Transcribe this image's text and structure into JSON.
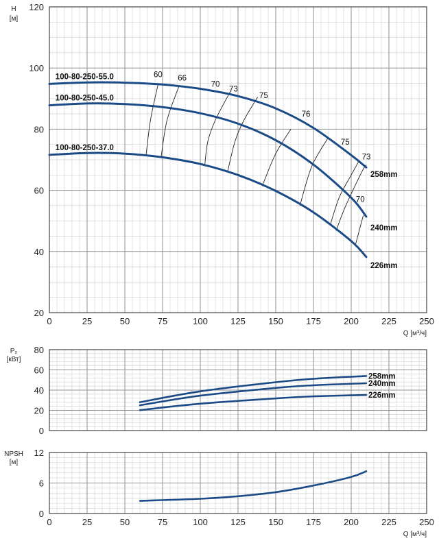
{
  "chart_data": [
    {
      "id": "head",
      "type": "line",
      "ylabel": [
        "H",
        "[м]"
      ],
      "xlabel": "Q [м³/ч]",
      "xlim": [
        0,
        250
      ],
      "ylim": [
        20,
        120
      ],
      "xticks": [
        0,
        25,
        50,
        75,
        100,
        125,
        150,
        175,
        200,
        225,
        250
      ],
      "yticks": [
        20,
        40,
        60,
        80,
        100,
        120
      ],
      "grid": true,
      "series": [
        {
          "name": "100-80-250-55.0",
          "end_label": "258mm",
          "x": [
            0,
            25,
            50,
            75,
            100,
            125,
            150,
            175,
            200,
            210
          ],
          "y": [
            94.8,
            95.3,
            95.2,
            94.6,
            93.2,
            90.8,
            86.8,
            80.4,
            71.5,
            67.5
          ]
        },
        {
          "name": "100-80-250-45.0",
          "end_label": "240mm",
          "x": [
            0,
            25,
            50,
            75,
            100,
            125,
            150,
            175,
            200,
            210
          ],
          "y": [
            87.8,
            88.4,
            88.2,
            87.2,
            85.2,
            81.8,
            76.4,
            68.4,
            57.6,
            51.4
          ]
        },
        {
          "name": "100-80-250-37.0",
          "end_label": "226mm",
          "x": [
            0,
            25,
            50,
            75,
            100,
            125,
            150,
            175,
            200,
            210
          ],
          "y": [
            71.6,
            72.2,
            72.0,
            70.8,
            68.6,
            65.0,
            59.8,
            52.8,
            43.4,
            38.2
          ]
        }
      ],
      "efficiency_lines": [
        {
          "label": "60",
          "points": [
            [
              64,
              71.2
            ],
            [
              67,
              83
            ],
            [
              72,
              94.6
            ]
          ]
        },
        {
          "label": "66",
          "points": [
            [
              74,
              70.8
            ],
            [
              78,
              83
            ],
            [
              86,
              94.2
            ]
          ]
        },
        {
          "label": "70",
          "points": [
            [
              103,
              68.4
            ],
            [
              105,
              76
            ],
            [
              110,
              83
            ],
            [
              120,
              92.4
            ]
          ]
        },
        {
          "label": "73",
          "points": [
            [
              118,
              65.9
            ],
            [
              123,
              76
            ],
            [
              129,
              83
            ],
            [
              138,
              90.5
            ]
          ]
        },
        {
          "label": "75",
          "points": [
            [
              141,
              61.4
            ],
            [
              150,
              72
            ],
            [
              160,
              80
            ]
          ]
        },
        {
          "label": "76",
          "points": [
            [
              166,
              55
            ],
            [
              174,
              68
            ],
            [
              185,
              77.4
            ]
          ]
        },
        {
          "label": "75",
          "points": [
            [
              186,
              48.5
            ],
            [
              192,
              57.6
            ],
            [
              200,
              65
            ],
            [
              205,
              69.5
            ]
          ]
        },
        {
          "label": "73",
          "points": [
            [
              190,
              46.8
            ],
            [
              196,
              54.5
            ],
            [
              207,
              66
            ],
            [
              210,
              68.3
            ]
          ]
        },
        {
          "label": "70",
          "points": [
            [
              203,
              42.5
            ],
            [
              208,
              51.8
            ]
          ]
        }
      ],
      "efficiency_label_pos": [
        [
          72,
          97
        ],
        [
          88,
          95.9
        ],
        [
          110,
          93.9
        ],
        [
          122,
          92.3
        ],
        [
          142,
          90.2
        ],
        [
          170,
          84.1
        ],
        [
          196,
          74.9
        ],
        [
          210,
          70.1
        ],
        [
          206,
          56.2
        ]
      ]
    },
    {
      "id": "power",
      "type": "line",
      "ylabel": [
        "P₂",
        "[кВт]"
      ],
      "xlim": [
        0,
        250
      ],
      "ylim": [
        0,
        80
      ],
      "xticks": [
        0,
        25,
        50,
        75,
        100,
        125,
        150,
        175,
        200,
        225,
        250
      ],
      "yticks": [
        0,
        20,
        40,
        60,
        80
      ],
      "grid": true,
      "series": [
        {
          "name": "258mm",
          "x": [
            60,
            100,
            150,
            175,
            210
          ],
          "y": [
            28,
            38.8,
            47.8,
            51.2,
            54
          ]
        },
        {
          "name": "240mm",
          "x": [
            60,
            100,
            150,
            175,
            210
          ],
          "y": [
            25,
            34.5,
            42.2,
            44.8,
            46.8
          ]
        },
        {
          "name": "226mm",
          "x": [
            60,
            100,
            150,
            175,
            210
          ],
          "y": [
            20.2,
            26.6,
            31.8,
            33.8,
            35.2
          ]
        }
      ]
    },
    {
      "id": "npsh",
      "type": "line",
      "ylabel": [
        "NPSH",
        "[м]"
      ],
      "xlabel": "Q [м³/ч]",
      "xlim": [
        0,
        250
      ],
      "ylim": [
        0,
        12
      ],
      "xticks": [
        0,
        25,
        50,
        75,
        100,
        125,
        150,
        175,
        200,
        225,
        250
      ],
      "yticks": [
        0,
        6,
        12
      ],
      "grid": true,
      "series": [
        {
          "x": [
            60,
            100,
            125,
            150,
            175,
            200,
            210
          ],
          "y": [
            2.5,
            2.9,
            3.4,
            4.2,
            5.5,
            7.2,
            8.3
          ]
        }
      ]
    }
  ],
  "colors": {
    "curve": "#1b4b86",
    "grid_major": "#8f8f8f",
    "grid_minor": "#d4d4d4",
    "text": "#222222"
  }
}
